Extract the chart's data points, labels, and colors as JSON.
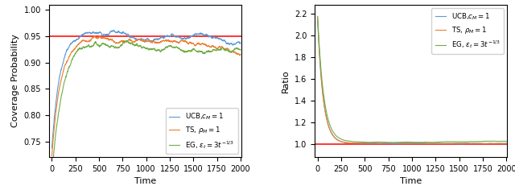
{
  "t_max": 2000,
  "alpha": 0.95,
  "left_ylim": [
    0.72,
    1.01
  ],
  "left_yticks": [
    0.75,
    0.8,
    0.85,
    0.9,
    0.95,
    1.0
  ],
  "right_ylim": [
    0.88,
    2.28
  ],
  "right_yticks": [
    1.0,
    1.2,
    1.4,
    1.6,
    1.8,
    2.0,
    2.2
  ],
  "xticks": [
    0,
    250,
    500,
    750,
    1000,
    1250,
    1500,
    1750,
    2000
  ],
  "xlabel": "Time",
  "left_ylabel": "Coverage Probability",
  "right_ylabel": "Ratio",
  "color_ucb": "#5B9BD5",
  "color_ts": "#ED7D31",
  "color_eg": "#70AD47",
  "color_ref": "#FF0000",
  "label_ucb": "UCB,$c_M=1$",
  "label_ts": "TS, $\\rho_M=1$",
  "label_eg": "EG, $\\varepsilon_t=3t^{-1/3}$",
  "seed_cov": 10,
  "seed_ratio": 20
}
